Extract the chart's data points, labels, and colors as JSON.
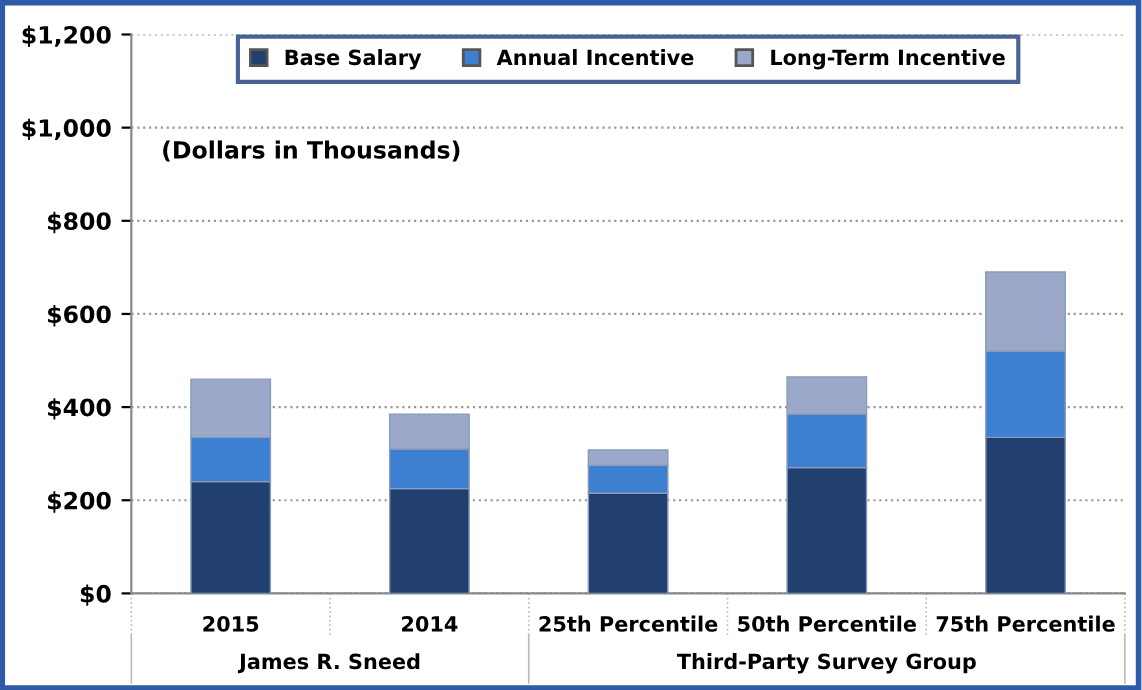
{
  "chart_data": {
    "type": "bar",
    "stacked": true,
    "categories": [
      "2015",
      "2014",
      "25th Percentile",
      "50th Percentile",
      "75th Percentile"
    ],
    "series": [
      {
        "name": "Base Salary",
        "color": "#22406f",
        "values": [
          240,
          225,
          215,
          270,
          335
        ]
      },
      {
        "name": "Annual Incentive",
        "color": "#3d7fd0",
        "values": [
          95,
          85,
          60,
          115,
          185
        ]
      },
      {
        "name": "Long-Term Incentive",
        "color": "#9ca8c9",
        "values": [
          125,
          75,
          33,
          80,
          170
        ]
      }
    ],
    "ylim": [
      0,
      1200
    ],
    "yticks": [
      {
        "value": 0,
        "label": "$0"
      },
      {
        "value": 200,
        "label": "$200"
      },
      {
        "value": 400,
        "label": "$400"
      },
      {
        "value": 600,
        "label": "$600"
      },
      {
        "value": 800,
        "label": "$800"
      },
      {
        "value": 1000,
        "label": "$1,000"
      },
      {
        "value": 1200,
        "label": "$1,200"
      }
    ],
    "grid": "y",
    "legend": "top",
    "annotations": [
      "(Dollars in Thousands)",
      "James R. Sneed",
      "Third-Party Survey Group"
    ]
  }
}
